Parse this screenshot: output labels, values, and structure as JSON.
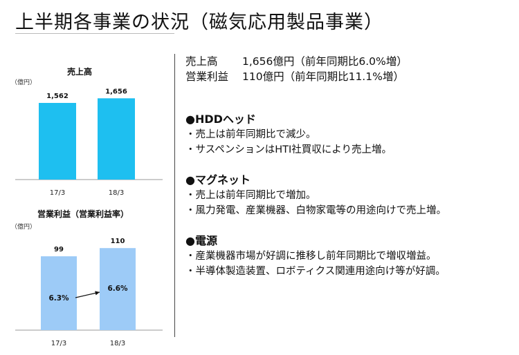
{
  "page": {
    "title": "上半期各事業の状況（磁気応用製品事業）"
  },
  "summary": [
    {
      "label": "売上高",
      "value": "1,656億円（前年同期比6.0%増）"
    },
    {
      "label": "営業利益",
      "value": "110億円（前年同期比11.1%増）"
    }
  ],
  "sections": [
    {
      "title": "●HDDヘッド",
      "bullets": [
        "・売上は前年同期比で減少。",
        "・サスペンションはHTI社買収により売上増。"
      ]
    },
    {
      "title": "●マグネット",
      "bullets": [
        "・売上は前年同期比で増加。",
        "・風力発電、産業機器、白物家電等の用途向けで売上増。"
      ]
    },
    {
      "title": "●電源",
      "bullets": [
        "・産業機器市場が好調に推移し前年同期比で増収増益。",
        "・半導体製造装置、ロボティクス関連用途向け等が好調。"
      ]
    }
  ],
  "colors": {
    "bar_sales": "#1ebff0",
    "bar_profit": "#9dcbf7"
  },
  "chart_data": [
    {
      "type": "bar",
      "title": "売上高",
      "unit": "（億円）",
      "categories": [
        "17/3",
        "18/3"
      ],
      "values": [
        1562,
        1656
      ],
      "value_labels": [
        "1,562",
        "1,656"
      ],
      "ylim": [
        0,
        1900
      ]
    },
    {
      "type": "bar",
      "title": "営業利益（営業利益率）",
      "unit": "（億円）",
      "categories": [
        "17/3",
        "18/3"
      ],
      "values": [
        99,
        110
      ],
      "value_labels": [
        "99",
        "110"
      ],
      "margins": [
        "6.3%",
        "6.6%"
      ],
      "ylim": [
        0,
        125
      ]
    }
  ]
}
